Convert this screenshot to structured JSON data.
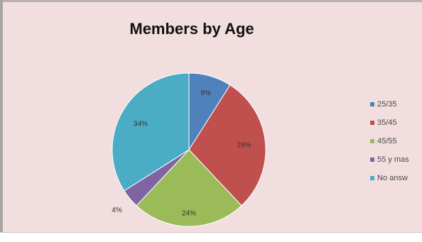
{
  "chart_data": {
    "type": "pie",
    "title": "Members by Age",
    "categories": [
      "25/35",
      "35/45",
      "45/55",
      "55 y mas",
      "No answer"
    ],
    "legend_labels": [
      "25/35",
      "35/45",
      "45/55",
      "55 y mas",
      "No answ"
    ],
    "values": [
      9,
      29,
      24,
      4,
      34
    ],
    "data_labels": [
      "9%",
      "29%",
      "24%",
      "4%",
      "34%"
    ],
    "colors": [
      "#4f81bd",
      "#c0504d",
      "#9bbb59",
      "#8064a2",
      "#4bacc6"
    ],
    "legend_position": "right"
  }
}
